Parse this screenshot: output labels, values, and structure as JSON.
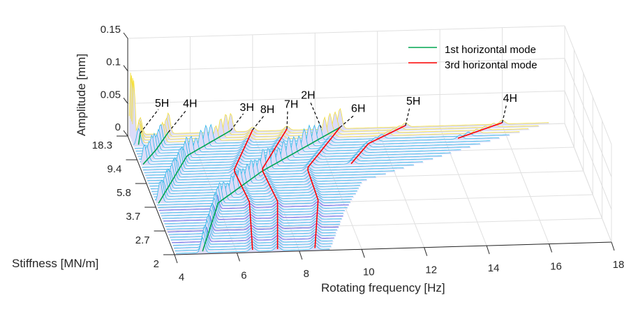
{
  "chart_data": {
    "type": "waterfall-3d",
    "title": "",
    "xlabel": "Rotating frequency [Hz]",
    "ylabel": "Stiffness [MN/m]",
    "zlabel": "Amplitude [mm]",
    "xlim": [
      4,
      18
    ],
    "zlim": [
      0,
      0.15
    ],
    "x_ticks": [
      "4",
      "6",
      "8",
      "10",
      "12",
      "14",
      "16",
      "18"
    ],
    "y_ticks": [
      "2",
      "2.7",
      "3.7",
      "5.8",
      "9.4",
      "18.3"
    ],
    "z_ticks": [
      "0",
      "0.05",
      "0.1",
      "0.15"
    ],
    "grid": true,
    "legend_position": "top-right",
    "colors": {
      "first_mode": "#00a651",
      "third_mode": "#ff0000",
      "surface": "#5050e0",
      "surface_peak": "#2fb8e8",
      "surface_max": "#f5e03a"
    },
    "legend": [
      {
        "label": "1st horizontal mode",
        "color": "#00a651"
      },
      {
        "label": "3rd horizontal mode",
        "color": "#ff0000"
      }
    ],
    "mode_curves": [
      {
        "mode": "1st",
        "harmonic": "5H",
        "points": [
          [
            4.4,
            18.3
          ],
          [
            4.2,
            14
          ]
        ]
      },
      {
        "mode": "1st",
        "harmonic": "4H",
        "points": [
          [
            5.3,
            18.3
          ],
          [
            4.7,
            12
          ],
          [
            4.1,
            8.3
          ]
        ]
      },
      {
        "mode": "1st",
        "harmonic": "3H",
        "points": [
          [
            7.3,
            18.3
          ],
          [
            5.6,
            9.4
          ],
          [
            4.1,
            3.8
          ]
        ]
      },
      {
        "mode": "1st",
        "harmonic": "2H",
        "points": [
          [
            10.8,
            18.3
          ],
          [
            7.8,
            6.8
          ],
          [
            6.0,
            3.7
          ],
          [
            4.9,
            2
          ]
        ]
      },
      {
        "mode": "3rd",
        "harmonic": "8H",
        "points": [
          [
            8.0,
            18.3
          ],
          [
            6.9,
            7.0
          ],
          [
            7.0,
            3.7
          ],
          [
            6.5,
            2
          ]
        ]
      },
      {
        "mode": "3rd",
        "harmonic": "7H",
        "points": [
          [
            9.1,
            18.3
          ],
          [
            7.8,
            7.0
          ],
          [
            7.9,
            3.7
          ],
          [
            7.3,
            2
          ]
        ]
      },
      {
        "mode": "3rd",
        "harmonic": "6H",
        "points": [
          [
            10.8,
            18.3
          ],
          [
            9.25,
            7.0
          ],
          [
            9.2,
            3.7
          ],
          [
            8.5,
            2
          ]
        ]
      },
      {
        "mode": "3rd",
        "harmonic": "5H",
        "points": [
          [
            12.9,
            18.3
          ],
          [
            11.5,
            12
          ],
          [
            10.7,
            7.5
          ]
        ]
      },
      {
        "mode": "3rd",
        "harmonic": "4H",
        "points": [
          [
            16.0,
            18.3
          ],
          [
            14.4,
            13
          ]
        ]
      }
    ],
    "annotations": [
      {
        "text": "5H",
        "at": [
          4.4,
          18.3
        ]
      },
      {
        "text": "4H",
        "at": [
          5.3,
          18.3
        ]
      },
      {
        "text": "3H",
        "at": [
          7.3,
          18.3
        ]
      },
      {
        "text": "8H",
        "at": [
          8.0,
          18.3
        ]
      },
      {
        "text": "7H",
        "at": [
          9.1,
          18.3
        ]
      },
      {
        "text": "2H",
        "at": [
          10.2,
          18.3
        ]
      },
      {
        "text": "6H",
        "at": [
          10.8,
          18.3
        ]
      },
      {
        "text": "5H",
        "at": [
          12.9,
          18.3
        ]
      },
      {
        "text": "4H",
        "at": [
          16.0,
          18.3
        ]
      }
    ]
  }
}
